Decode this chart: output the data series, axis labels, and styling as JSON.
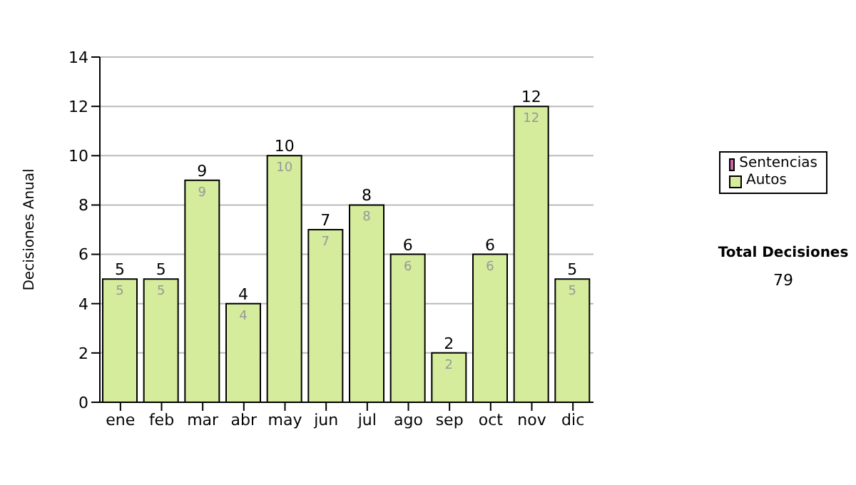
{
  "chart_data": {
    "type": "bar",
    "ylabel": "Decisiones Anual",
    "categories": [
      "ene",
      "feb",
      "mar",
      "abr",
      "may",
      "jun",
      "jul",
      "ago",
      "sep",
      "oct",
      "nov",
      "dic"
    ],
    "series": [
      {
        "name": "Sentencias",
        "color": "#cc66aa",
        "values": [
          0,
          0,
          0,
          0,
          0,
          0,
          0,
          0,
          0,
          0,
          0,
          0
        ]
      },
      {
        "name": "Autos",
        "color": "#d4ec9c",
        "values": [
          5,
          5,
          9,
          4,
          10,
          7,
          8,
          6,
          2,
          6,
          12,
          5
        ],
        "value_labels": [
          "5",
          "5",
          "9",
          "4",
          "10",
          "7",
          "8",
          "6",
          "2",
          "6",
          "12",
          "5"
        ]
      }
    ],
    "stacked": true,
    "totals": [
      "5",
      "5",
      "9",
      "4",
      "10",
      "7",
      "8",
      "6",
      "2",
      "6",
      "12",
      "5"
    ],
    "ylim": [
      0,
      14
    ],
    "yticks": [
      0,
      2,
      4,
      6,
      8,
      10,
      12,
      14
    ],
    "grid": "y",
    "legend": "right",
    "annotations": [
      "Total Decisiones",
      "79"
    ]
  }
}
